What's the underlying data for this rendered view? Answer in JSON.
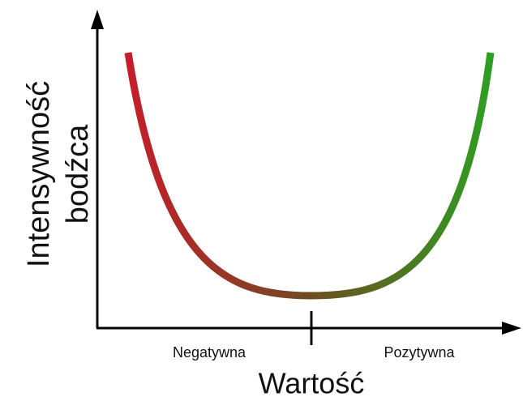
{
  "axes": {
    "y_label": [
      "Intensywność",
      "bodźca"
    ],
    "x_label": "Wartość"
  },
  "regions": [
    "Negatywna",
    "Pozytywna"
  ]
}
